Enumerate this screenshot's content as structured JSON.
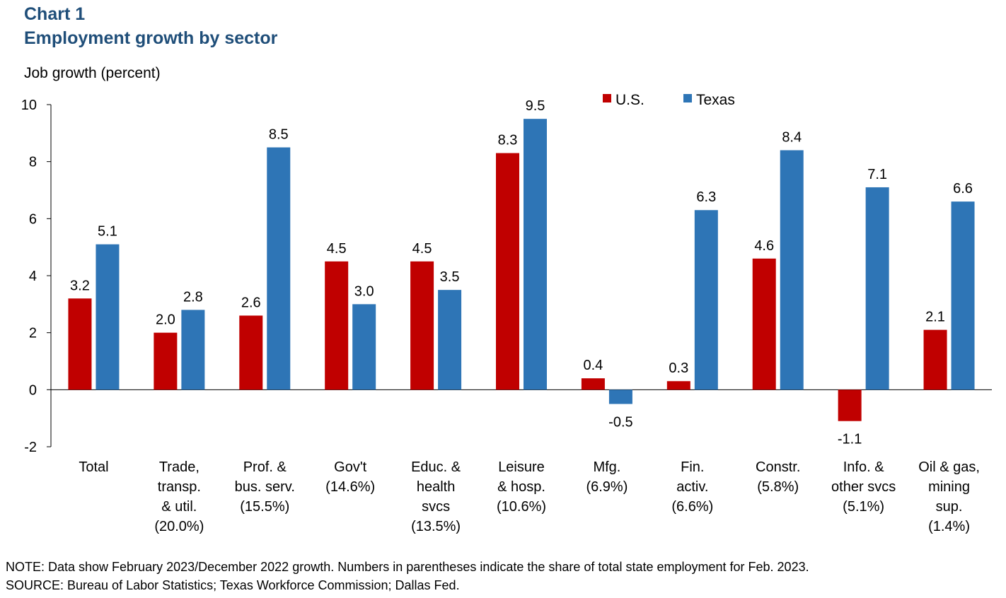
{
  "header": {
    "chart_number": "Chart 1",
    "title": "Employment growth by sector",
    "ylabel": "Job growth (percent)"
  },
  "footer": {
    "note": "NOTE: Data show February 2023/December 2022 growth. Numbers in parentheses indicate the share of total state employment for Feb. 2023.",
    "source": "SOURCE: Bureau of Labor Statistics; Texas Workforce Commission; Dallas Fed."
  },
  "chart_data": {
    "type": "bar",
    "title": "Employment growth by sector",
    "ylabel": "Job growth (percent)",
    "xlabel": "",
    "ylim": [
      -2,
      10
    ],
    "yticks": [
      -2,
      0,
      2,
      4,
      6,
      8,
      10
    ],
    "legend_position": "top-right",
    "grid": false,
    "categories": [
      [
        "Total"
      ],
      [
        "Trade,",
        "transp.",
        "& util.",
        "(20.0%)"
      ],
      [
        "Prof. &",
        "bus. serv.",
        "(15.5%)"
      ],
      [
        "Gov't",
        "(14.6%)"
      ],
      [
        "Educ. &",
        "health",
        "svcs",
        "(13.5%)"
      ],
      [
        "Leisure",
        "& hosp.",
        "(10.6%)"
      ],
      [
        "Mfg.",
        "(6.9%)"
      ],
      [
        "Fin.",
        "activ.",
        "(6.6%)"
      ],
      [
        "Constr.",
        "(5.8%)"
      ],
      [
        "Info. &",
        "other svcs",
        "(5.1%)"
      ],
      [
        "Oil & gas,",
        "mining",
        "sup.",
        "(1.4%)"
      ]
    ],
    "series": [
      {
        "name": "U.S.",
        "color": "#c00000",
        "values": [
          3.2,
          2.0,
          2.6,
          4.5,
          4.5,
          8.3,
          0.4,
          0.3,
          4.6,
          -1.1,
          2.1
        ],
        "labels": [
          "3.2",
          "2.0",
          "2.6",
          "4.5",
          "4.5",
          "8.3",
          "0.4",
          "0.3",
          "4.6",
          "-1.1",
          "2.1"
        ]
      },
      {
        "name": "Texas",
        "color": "#2e75b6",
        "values": [
          5.1,
          2.8,
          8.5,
          3.0,
          3.5,
          9.5,
          -0.5,
          6.3,
          8.4,
          7.1,
          6.6
        ],
        "labels": [
          "5.1",
          "2.8",
          "8.5",
          "3.0",
          "3.5",
          "9.5",
          "-0.5",
          "6.3",
          "8.4",
          "7.1",
          "6.6"
        ]
      }
    ]
  }
}
